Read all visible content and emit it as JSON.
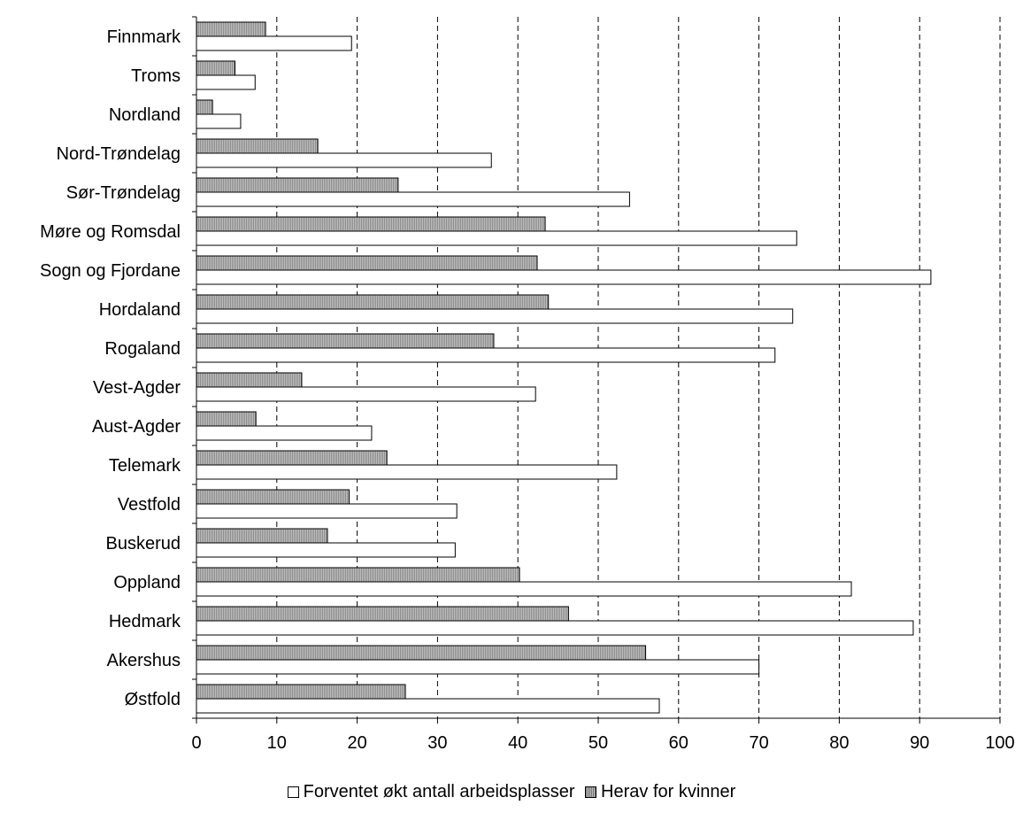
{
  "chart_data": {
    "type": "bar",
    "orientation": "horizontal",
    "categories": [
      "Finnmark",
      "Troms",
      "Nordland",
      "Nord-Trøndelag",
      "Sør-Trøndelag",
      "Møre og Romsdal",
      "Sogn og Fjordane",
      "Hordaland",
      "Rogaland",
      "Vest-Agder",
      "Aust-Agder",
      "Telemark",
      "Vestfold",
      "Buskerud",
      "Oppland",
      "Hedmark",
      "Akershus",
      "Østfold"
    ],
    "series": [
      {
        "name": "Forventet økt antall arbeidsplasser",
        "color": "#ffffff",
        "values": [
          19.3,
          7.3,
          5.5,
          36.7,
          53.9,
          74.7,
          91.4,
          74.2,
          72.0,
          42.2,
          21.8,
          52.3,
          32.4,
          32.2,
          81.5,
          89.2,
          70.0,
          57.6
        ]
      },
      {
        "name": "Herav for kvinner",
        "color": "#b8b8b8",
        "values": [
          8.6,
          4.8,
          2.0,
          15.1,
          25.1,
          43.4,
          42.4,
          43.8,
          37.0,
          13.1,
          7.4,
          23.7,
          19.0,
          16.3,
          40.2,
          46.3,
          55.9,
          26.0
        ]
      }
    ],
    "xlim": [
      0,
      100
    ],
    "xticks": [
      "0",
      "10",
      "20",
      "30",
      "40",
      "50",
      "60",
      "70",
      "80",
      "90",
      "100"
    ],
    "grid": "vertical dashed",
    "legend_position": "bottom",
    "title": "",
    "xlabel": "",
    "ylabel": ""
  },
  "legend": {
    "items": [
      {
        "label": "Forventet økt antall arbeidsplasser"
      },
      {
        "label": "Herav for kvinner"
      }
    ]
  }
}
